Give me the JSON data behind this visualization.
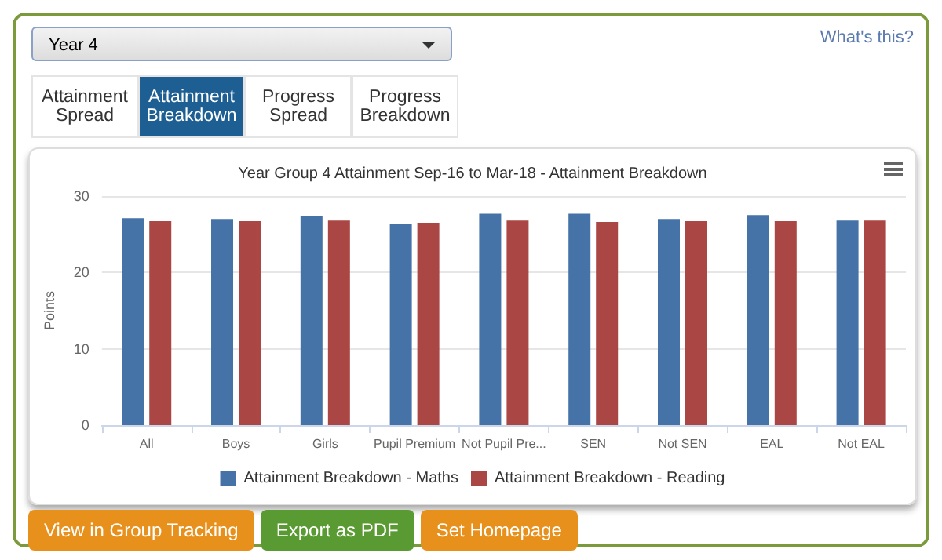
{
  "chart_data": {
    "type": "bar",
    "title": "Year Group 4 Attainment Sep-16 to Mar-18 - Attainment Breakdown",
    "ylabel": "Points",
    "categories": [
      "All",
      "Boys",
      "Girls",
      "Pupil Premium",
      "Not Pupil Pre...",
      "SEN",
      "Not SEN",
      "EAL",
      "Not EAL"
    ],
    "series": [
      {
        "name": "Attainment Breakdown - Maths",
        "color": "#4572a7",
        "values": [
          27.1,
          27,
          27.4,
          26.3,
          27.7,
          27.7,
          27,
          27.5,
          26.8
        ]
      },
      {
        "name": "Attainment Breakdown - Reading",
        "color": "#aa4643",
        "values": [
          26.7,
          26.7,
          26.8,
          26.5,
          26.8,
          26.6,
          26.7,
          26.7,
          26.8
        ]
      }
    ],
    "ylim": [
      0,
      30
    ],
    "yticks": [
      0,
      10,
      20,
      30
    ],
    "grid": "y",
    "legend": "bottom",
    "annotations": [
      "Year 4",
      "What's this?",
      "Attainment Spread",
      "Attainment Breakdown",
      "Progress Spread",
      "Progress Breakdown",
      "View in Group Tracking",
      "Export as PDF",
      "Set Homepage"
    ]
  }
}
